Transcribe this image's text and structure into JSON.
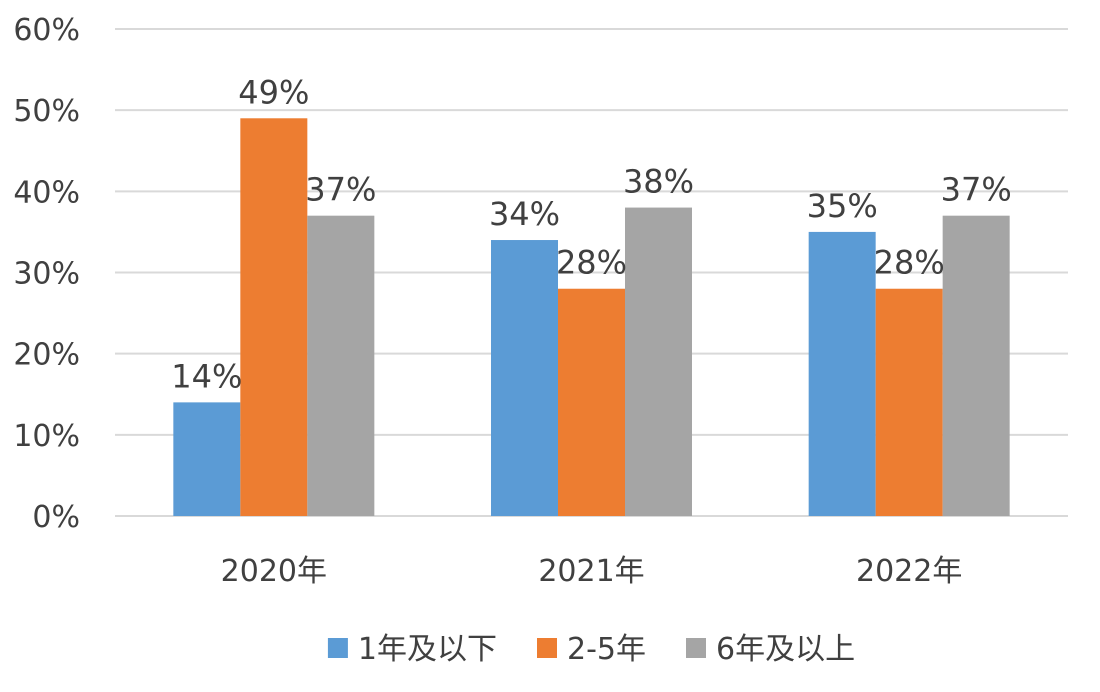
{
  "chart_data": {
    "type": "bar",
    "categories": [
      "2020年",
      "2021年",
      "2022年"
    ],
    "series": [
      {
        "name": "1年及以下",
        "values": [
          14,
          34,
          35
        ],
        "color": "#5B9BD5"
      },
      {
        "name": "2-5年",
        "values": [
          49,
          28,
          28
        ],
        "color": "#ED7D31"
      },
      {
        "name": "6年及以上",
        "values": [
          37,
          38,
          37
        ],
        "color": "#A5A5A5"
      }
    ],
    "value_suffix": "%",
    "ylim": [
      0,
      60
    ],
    "yticks": [
      0,
      10,
      20,
      30,
      40,
      50,
      60
    ],
    "ytick_labels": [
      "0%",
      "10%",
      "20%",
      "30%",
      "40%",
      "50%",
      "60%"
    ],
    "grid": true,
    "legend_position": "bottom",
    "gridline_color": "#D9D9D9",
    "text_color": "#404040"
  }
}
